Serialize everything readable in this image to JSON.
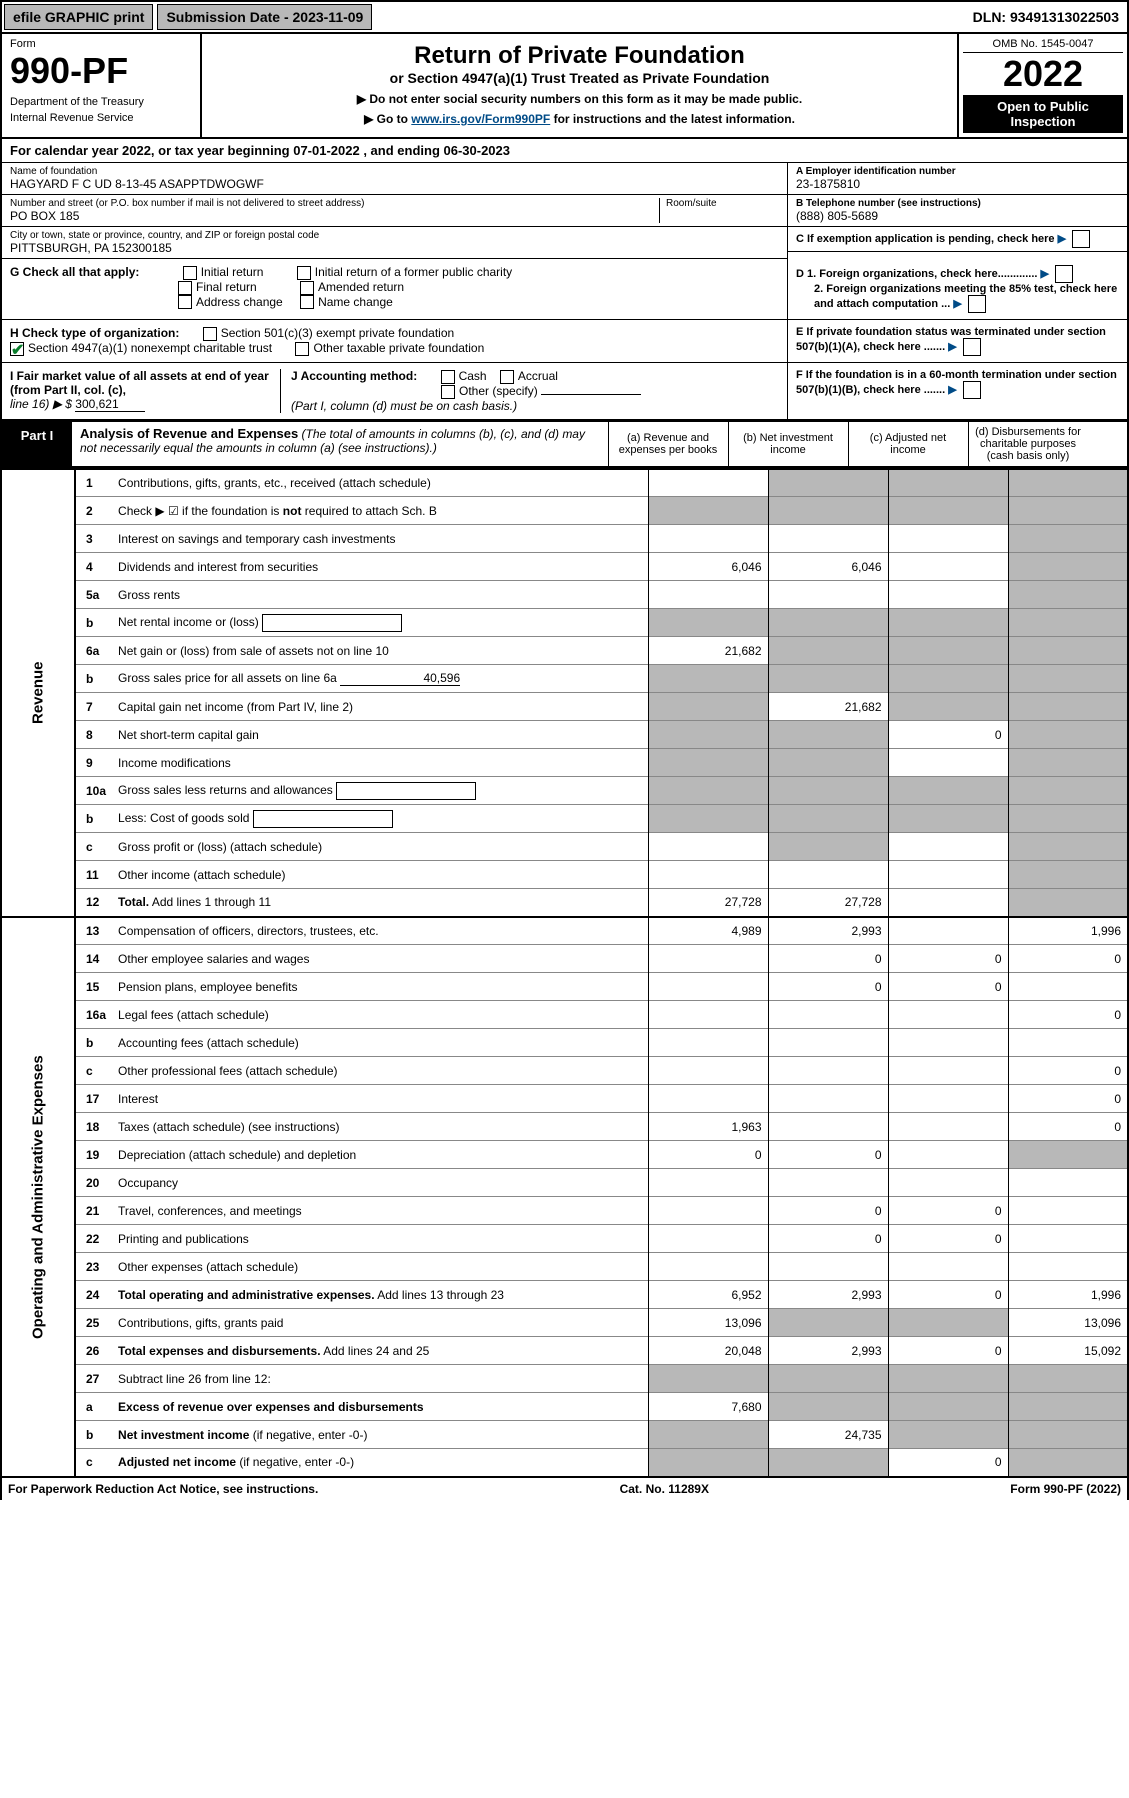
{
  "topbar": {
    "efile": "efile GRAPHIC print",
    "submission_label": "Submission Date - ",
    "submission_date": "2023-11-09",
    "dln_label": "DLN: ",
    "dln": "93491313022503"
  },
  "header": {
    "form_label": "Form",
    "form_number": "990-PF",
    "dept1": "Department of the Treasury",
    "dept2": "Internal Revenue Service",
    "title": "Return of Private Foundation",
    "subtitle": "or Section 4947(a)(1) Trust Treated as Private Foundation",
    "instr1": "▶ Do not enter social security numbers on this form as it may be made public.",
    "instr2_pre": "▶ Go to ",
    "instr2_link": "www.irs.gov/Form990PF",
    "instr2_post": " for instructions and the latest information.",
    "omb": "OMB No. 1545-0047",
    "year": "2022",
    "open_pub": "Open to Public Inspection"
  },
  "calendar": {
    "text": "For calendar year 2022, or tax year beginning 07-01-2022                     , and ending 06-30-2023"
  },
  "foundation": {
    "name_label": "Name of foundation",
    "name": "HAGYARD F C UD 8-13-45 ASAPPTDWOGWF",
    "addr_label": "Number and street (or P.O. box number if mail is not delivered to street address)",
    "addr": "PO BOX 185",
    "room_label": "Room/suite",
    "city_label": "City or town, state or province, country, and ZIP or foreign postal code",
    "city": "PITTSBURGH, PA  152300185",
    "ein_label": "A Employer identification number",
    "ein": "23-1875810",
    "phone_label": "B Telephone number (see instructions)",
    "phone": "(888) 805-5689",
    "c_label": "C If exemption application is pending, check here",
    "d1_label": "D 1. Foreign organizations, check here.............",
    "d2_label": "2. Foreign organizations meeting the 85% test, check here and attach computation ...",
    "e_label": "E  If private foundation status was terminated under section 507(b)(1)(A), check here .......",
    "f_label": "F  If the foundation is in a 60-month termination under section 507(b)(1)(B), check here .......",
    "g_label": "G Check all that apply:",
    "g_opts": [
      "Initial return",
      "Initial return of a former public charity",
      "Final return",
      "Amended return",
      "Address change",
      "Name change"
    ],
    "h_label": "H Check type of organization:",
    "h_opt1": "Section 501(c)(3) exempt private foundation",
    "h_opt2": "Section 4947(a)(1) nonexempt charitable trust",
    "h_opt3": "Other taxable private foundation",
    "i_label": "I Fair market value of all assets at end of year (from Part II, col. (c),",
    "i_line": "line 16) ▶ $",
    "i_value": "300,621",
    "j_label": "J Accounting method:",
    "j_opts": [
      "Cash",
      "Accrual",
      "Other (specify)"
    ],
    "j_note": "(Part I, column (d) must be on cash basis.)"
  },
  "part1": {
    "label": "Part I",
    "title": "Analysis of Revenue and Expenses",
    "title_note": "(The total of amounts in columns (b), (c), and (d) may not necessarily equal the amounts in column (a) (see instructions).)",
    "col_a": "(a)   Revenue and expenses per books",
    "col_b": "(b)   Net investment income",
    "col_c": "(c)   Adjusted net income",
    "col_d": "(d)   Disbursements for charitable purposes (cash basis only)"
  },
  "side_labels": {
    "revenue": "Revenue",
    "expenses": "Operating and Administrative Expenses"
  },
  "rows": [
    {
      "n": "1",
      "d": "Contributions, gifts, grants, etc., received (attach schedule)",
      "a": "",
      "b_grey": true,
      "c_grey": true,
      "d_grey": true
    },
    {
      "n": "2",
      "d": "Check ▶ ☑ if the foundation is <b>not</b> required to attach Sch. B",
      "a_grey": true,
      "b_grey": true,
      "c_grey": true,
      "d_grey": true,
      "checked": true
    },
    {
      "n": "3",
      "d": "Interest on savings and temporary cash investments",
      "a": "",
      "b": "",
      "c": "",
      "d_grey": true
    },
    {
      "n": "4",
      "d": "Dividends and interest from securities",
      "a": "6,046",
      "b": "6,046",
      "c": "",
      "d_grey": true
    },
    {
      "n": "5a",
      "d": "Gross rents",
      "a": "",
      "b": "",
      "c": "",
      "d_grey": true
    },
    {
      "n": "b",
      "d": "Net rental income or (loss)",
      "inline_box": true,
      "a_grey": true,
      "b_grey": true,
      "c_grey": true,
      "d_grey": true
    },
    {
      "n": "6a",
      "d": "Net gain or (loss) from sale of assets not on line 10",
      "a": "21,682",
      "b_grey": true,
      "c_grey": true,
      "d_grey": true
    },
    {
      "n": "b",
      "d": "Gross sales price for all assets on line 6a",
      "inline_val": "40,596",
      "a_grey": true,
      "b_grey": true,
      "c_grey": true,
      "d_grey": true
    },
    {
      "n": "7",
      "d": "Capital gain net income (from Part IV, line 2)",
      "a_grey": true,
      "b": "21,682",
      "c_grey": true,
      "d_grey": true
    },
    {
      "n": "8",
      "d": "Net short-term capital gain",
      "a_grey": true,
      "b_grey": true,
      "c": "0",
      "d_grey": true
    },
    {
      "n": "9",
      "d": "Income modifications",
      "a_grey": true,
      "b_grey": true,
      "c": "",
      "d_grey": true
    },
    {
      "n": "10a",
      "d": "Gross sales less returns and allowances",
      "inline_box": true,
      "a_grey": true,
      "b_grey": true,
      "c_grey": true,
      "d_grey": true
    },
    {
      "n": "b",
      "d": "Less: Cost of goods sold",
      "inline_box": true,
      "a_grey": true,
      "b_grey": true,
      "c_grey": true,
      "d_grey": true
    },
    {
      "n": "c",
      "d": "Gross profit or (loss) (attach schedule)",
      "a": "",
      "b_grey": true,
      "c": "",
      "d_grey": true
    },
    {
      "n": "11",
      "d": "Other income (attach schedule)",
      "a": "",
      "b": "",
      "c": "",
      "d_grey": true
    },
    {
      "n": "12",
      "d": "<b>Total.</b> Add lines 1 through 11",
      "a": "27,728",
      "b": "27,728",
      "c": "",
      "d_grey": true
    }
  ],
  "exp_rows": [
    {
      "n": "13",
      "d": "Compensation of officers, directors, trustees, etc.",
      "a": "4,989",
      "b": "2,993",
      "c": "",
      "dd": "1,996"
    },
    {
      "n": "14",
      "d": "Other employee salaries and wages",
      "a": "",
      "b": "0",
      "c": "0",
      "dd": "0"
    },
    {
      "n": "15",
      "d": "Pension plans, employee benefits",
      "a": "",
      "b": "0",
      "c": "0",
      "dd": ""
    },
    {
      "n": "16a",
      "d": "Legal fees (attach schedule)",
      "a": "",
      "b": "",
      "c": "",
      "dd": "0"
    },
    {
      "n": "b",
      "d": "Accounting fees (attach schedule)",
      "a": "",
      "b": "",
      "c": "",
      "dd": ""
    },
    {
      "n": "c",
      "d": "Other professional fees (attach schedule)",
      "a": "",
      "b": "",
      "c": "",
      "dd": "0"
    },
    {
      "n": "17",
      "d": "Interest",
      "a": "",
      "b": "",
      "c": "",
      "dd": "0"
    },
    {
      "n": "18",
      "d": "Taxes (attach schedule) (see instructions)",
      "a": "1,963",
      "b": "",
      "c": "",
      "dd": "0"
    },
    {
      "n": "19",
      "d": "Depreciation (attach schedule) and depletion",
      "a": "0",
      "b": "0",
      "c": "",
      "dd_grey": true
    },
    {
      "n": "20",
      "d": "Occupancy",
      "a": "",
      "b": "",
      "c": "",
      "dd": ""
    },
    {
      "n": "21",
      "d": "Travel, conferences, and meetings",
      "a": "",
      "b": "0",
      "c": "0",
      "dd": ""
    },
    {
      "n": "22",
      "d": "Printing and publications",
      "a": "",
      "b": "0",
      "c": "0",
      "dd": ""
    },
    {
      "n": "23",
      "d": "Other expenses (attach schedule)",
      "a": "",
      "b": "",
      "c": "",
      "dd": ""
    },
    {
      "n": "24",
      "d": "<b>Total operating and administrative expenses.</b> Add lines 13 through 23",
      "a": "6,952",
      "b": "2,993",
      "c": "0",
      "dd": "1,996"
    },
    {
      "n": "25",
      "d": "Contributions, gifts, grants paid",
      "a": "13,096",
      "b_grey": true,
      "c_grey": true,
      "dd": "13,096"
    },
    {
      "n": "26",
      "d": "<b>Total expenses and disbursements.</b> Add lines 24 and 25",
      "a": "20,048",
      "b": "2,993",
      "c": "0",
      "dd": "15,092"
    },
    {
      "n": "27",
      "d": "Subtract line 26 from line 12:",
      "a_grey": true,
      "b_grey": true,
      "c_grey": true,
      "dd_grey": true
    },
    {
      "n": "a",
      "d": "<b>Excess of revenue over expenses and disbursements</b>",
      "a": "7,680",
      "b_grey": true,
      "c_grey": true,
      "dd_grey": true
    },
    {
      "n": "b",
      "d": "<b>Net investment income</b> (if negative, enter -0-)",
      "a_grey": true,
      "b": "24,735",
      "c_grey": true,
      "dd_grey": true
    },
    {
      "n": "c",
      "d": "<b>Adjusted net income</b> (if negative, enter -0-)",
      "a_grey": true,
      "b_grey": true,
      "c": "0",
      "dd_grey": true
    }
  ],
  "footer": {
    "left": "For Paperwork Reduction Act Notice, see instructions.",
    "mid": "Cat. No. 11289X",
    "right": "Form 990-PF (2022)"
  },
  "colors": {
    "grey": "#b8b8b8",
    "link": "#004b87",
    "check_green": "#0a7d2c"
  }
}
